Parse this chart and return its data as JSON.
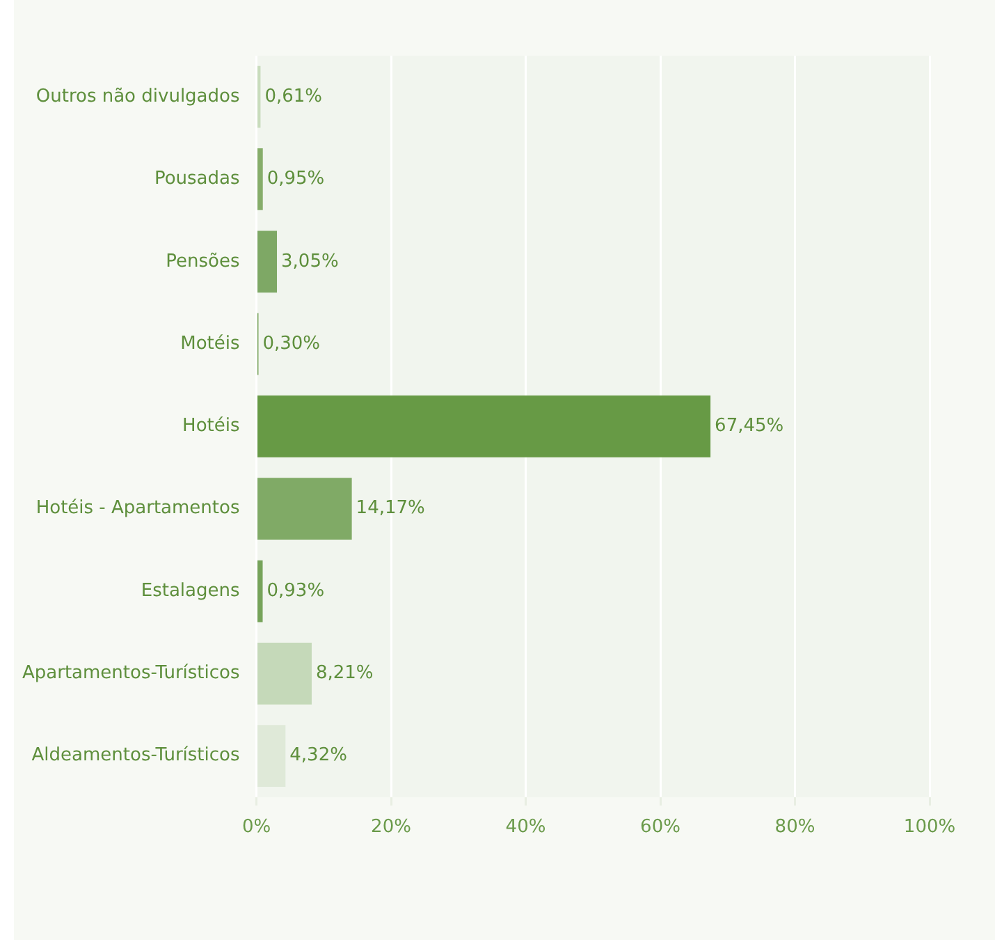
{
  "chart_data": {
    "type": "bar",
    "orientation": "horizontal",
    "categories": [
      "Outros não divulgados",
      "Pousadas",
      "Pensões",
      "Motéis",
      "Hotéis",
      "Hotéis - Apartamentos",
      "Estalagens",
      "Apartamentos-Turísticos",
      "Aldeamentos-Turísticos"
    ],
    "values": [
      0.61,
      0.95,
      3.05,
      0.3,
      67.45,
      14.17,
      0.93,
      8.21,
      4.32
    ],
    "value_labels": [
      "0,61%",
      "0,95%",
      "3,05%",
      "0,30%",
      "67,45%",
      "14,17%",
      "0,93%",
      "8,21%",
      "4,32%"
    ],
    "colors": [
      "#c8dcbc",
      "#86ad6a",
      "#7ea865",
      "#6a9a4a",
      "#679a45",
      "#80aa66",
      "#76a35a",
      "#c5d9b9",
      "#dfe9d8"
    ],
    "xlim": [
      0,
      100
    ],
    "xticks": [
      {
        "value": 0,
        "label": "0%"
      },
      {
        "value": 20,
        "label": "20%"
      },
      {
        "value": 40,
        "label": "40%"
      },
      {
        "value": 60,
        "label": "60%"
      },
      {
        "value": 80,
        "label": "80%"
      },
      {
        "value": 100,
        "label": "100%"
      }
    ],
    "grid": "x",
    "legend": false
  }
}
